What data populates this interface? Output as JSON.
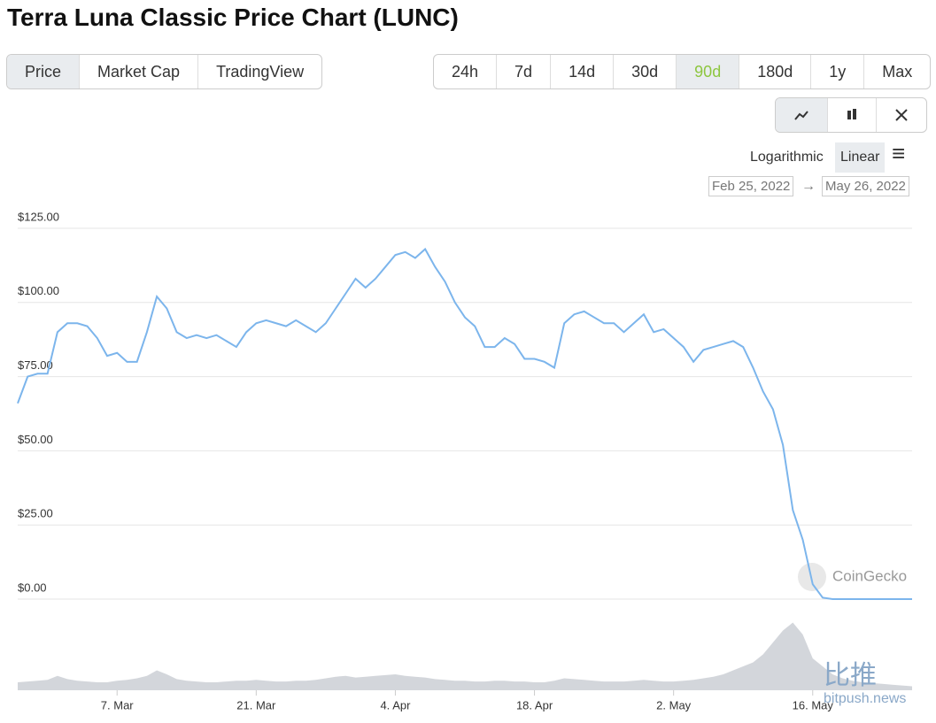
{
  "title": "Terra Luna Classic Price Chart (LUNC)",
  "tabs": [
    "Price",
    "Market Cap",
    "TradingView"
  ],
  "ranges": [
    "24h",
    "7d",
    "14d",
    "30d",
    "90d",
    "180d",
    "1y",
    "Max"
  ],
  "scales": [
    "Logarithmic",
    "Linear"
  ],
  "date_from": "Feb 25, 2022",
  "date_arrow": "→",
  "date_to": "May 26, 2022",
  "watermark": "CoinGecko",
  "source_mark": "比推",
  "source_url": "bitpush.news",
  "chart_data": {
    "type": "line",
    "categories": [
      null,
      null,
      null,
      null,
      null,
      null,
      null,
      null,
      null,
      null,
      "7. Mar",
      null,
      null,
      null,
      null,
      null,
      null,
      null,
      null,
      null,
      null,
      null,
      null,
      null,
      "21. Mar",
      null,
      null,
      null,
      null,
      null,
      null,
      null,
      null,
      null,
      null,
      null,
      null,
      null,
      "4. Apr",
      null,
      null,
      null,
      null,
      null,
      null,
      null,
      null,
      null,
      null,
      null,
      null,
      null,
      "18. Apr",
      null,
      null,
      null,
      null,
      null,
      null,
      null,
      null,
      null,
      null,
      null,
      null,
      null,
      "2. May",
      null,
      null,
      null,
      null,
      null,
      null,
      null,
      null,
      null,
      null,
      null,
      null,
      null,
      "16. May",
      null,
      null,
      null,
      null,
      null,
      null,
      null,
      null,
      null,
      null
    ],
    "series": [
      {
        "color": "#7cb5ec",
        "values": [
          66,
          75,
          76,
          76,
          90,
          93,
          93,
          92,
          88,
          82,
          83,
          80,
          80,
          90,
          102,
          98,
          90,
          88,
          89,
          88,
          89,
          87,
          85,
          90,
          93,
          94,
          93,
          92,
          94,
          92,
          90,
          93,
          98,
          103,
          108,
          105,
          108,
          112,
          116,
          117,
          115,
          118,
          112,
          107,
          100,
          95,
          92,
          85,
          85,
          88,
          86,
          81,
          81,
          80,
          78,
          93,
          96,
          97,
          95,
          93,
          93,
          90,
          93,
          96,
          90,
          91,
          88,
          85,
          80,
          84,
          85,
          86,
          87,
          85,
          78,
          70,
          64,
          52,
          30,
          20,
          5,
          0.5,
          0.002,
          0.0002,
          0.0001,
          0.0001,
          0.0001,
          0.0001,
          0.0001,
          0.0001,
          0.0001
        ]
      }
    ],
    "volume": [
      10,
      11,
      12,
      13,
      18,
      14,
      12,
      11,
      10,
      10,
      12,
      13,
      15,
      18,
      25,
      20,
      14,
      12,
      11,
      10,
      10,
      11,
      12,
      12,
      13,
      12,
      11,
      11,
      12,
      12,
      13,
      15,
      17,
      18,
      16,
      17,
      18,
      19,
      20,
      18,
      17,
      16,
      14,
      13,
      12,
      12,
      11,
      11,
      12,
      12,
      11,
      11,
      10,
      10,
      12,
      15,
      14,
      13,
      12,
      11,
      11,
      11,
      12,
      13,
      12,
      11,
      11,
      12,
      13,
      15,
      17,
      20,
      25,
      30,
      35,
      45,
      60,
      75,
      85,
      70,
      40,
      30,
      20,
      15,
      12,
      10,
      9,
      8,
      7,
      6,
      5
    ],
    "volume_lim": [
      0,
      100
    ],
    "ylim": [
      0,
      125
    ],
    "yticks": [
      {
        "value": 0,
        "label": "$0.00"
      },
      {
        "value": 25,
        "label": "$25.00"
      },
      {
        "value": 50,
        "label": "$50.00"
      },
      {
        "value": 75,
        "label": "$75.00"
      },
      {
        "value": 100,
        "label": "$100.00"
      },
      {
        "value": 125,
        "label": "$125.00"
      }
    ],
    "grid": true
  }
}
